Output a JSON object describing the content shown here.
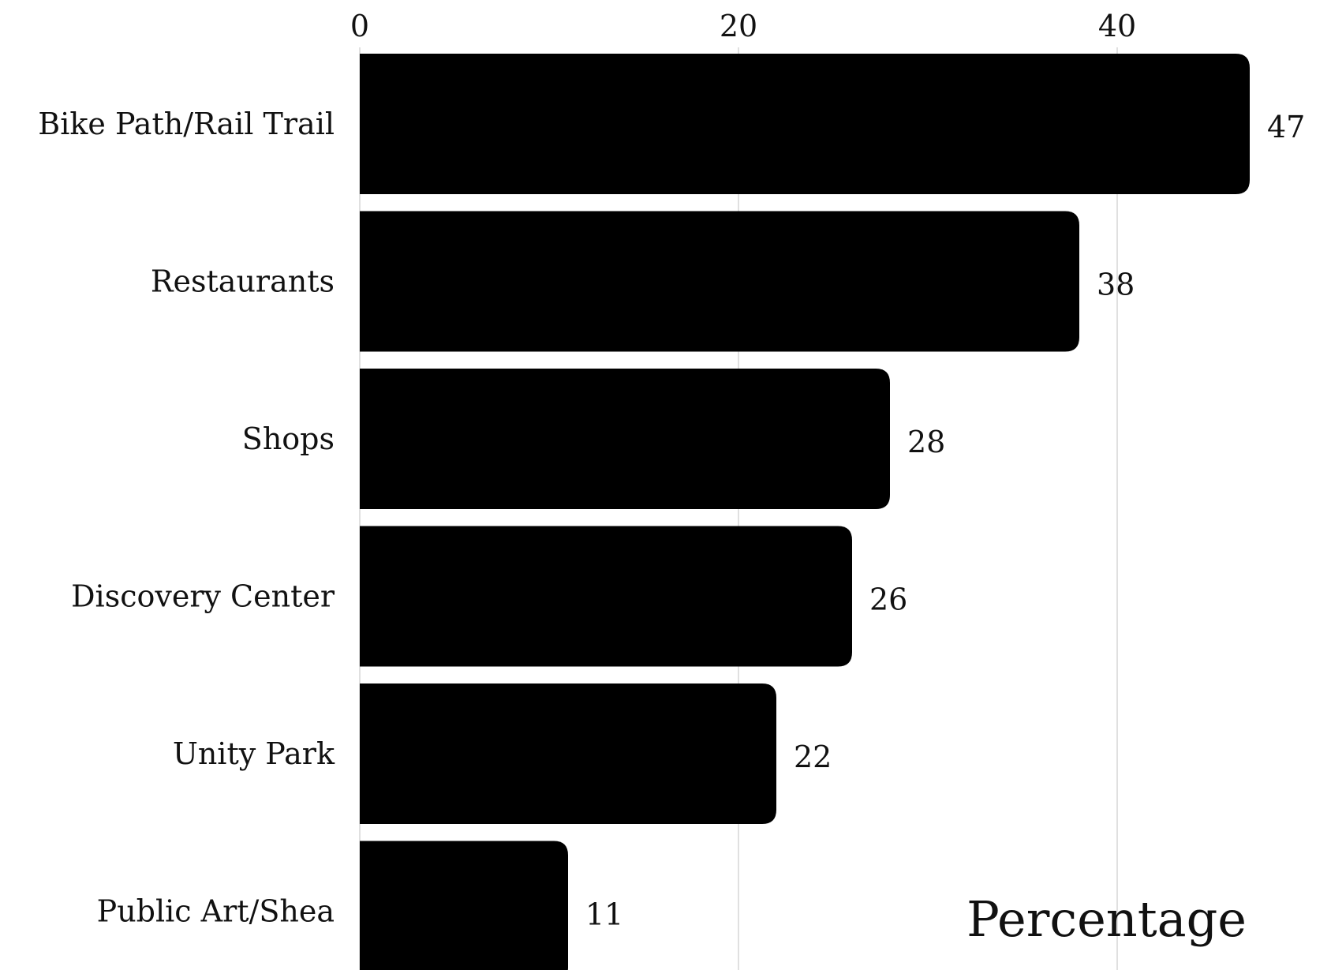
{
  "chart_data": {
    "type": "bar",
    "orientation": "horizontal",
    "categories": [
      "Bike Path/Rail Trail",
      "Restaurants",
      "Shops",
      "Discovery Center",
      "Unity Park",
      "Public Art/Shea"
    ],
    "values": [
      47,
      38,
      28,
      26,
      22,
      11
    ],
    "value_labels": [
      "47",
      "38",
      "28",
      "26",
      "22",
      "11"
    ],
    "xlabel": "Percentage",
    "xlim": [
      0,
      50
    ],
    "xticks": [
      0,
      20,
      40
    ],
    "xtick_labels": [
      "0",
      "20",
      "40"
    ],
    "bar_color": "#000000",
    "grid": true,
    "xaxis_position": "top"
  }
}
